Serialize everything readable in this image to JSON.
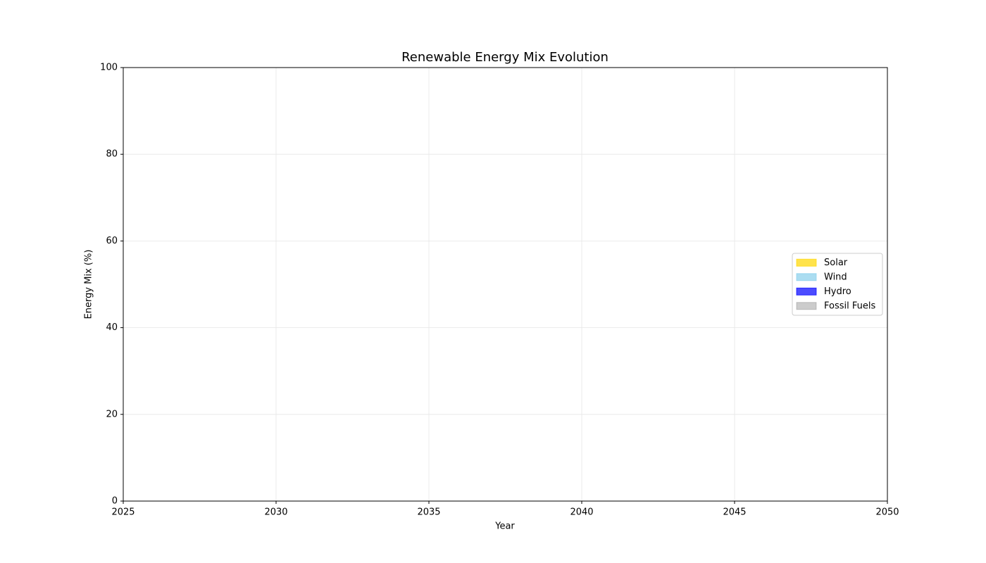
{
  "chart_data": {
    "type": "area",
    "stacked": true,
    "title": "Renewable Energy Mix Evolution",
    "x_label": "Year",
    "y_label": "Energy Mix (%)",
    "x": [],
    "series": [
      {
        "name": "Solar",
        "color": "#ffd700",
        "opacity": 0.7,
        "values": []
      },
      {
        "name": "Wind",
        "color": "#87ceeb",
        "opacity": 0.7,
        "values": []
      },
      {
        "name": "Hydro",
        "color": "#0000ff",
        "opacity": 0.7,
        "values": []
      },
      {
        "name": "Fossil Fuels",
        "color": "#808080",
        "opacity": 0.4,
        "values": []
      }
    ],
    "xlim": [
      2025,
      2050
    ],
    "xticks": [
      2025,
      2030,
      2035,
      2040,
      2045,
      2050
    ],
    "ylim": [
      0,
      100
    ],
    "yticks": [
      0,
      20,
      40,
      60,
      80,
      100
    ],
    "grid": true,
    "legend_position": "center right"
  }
}
